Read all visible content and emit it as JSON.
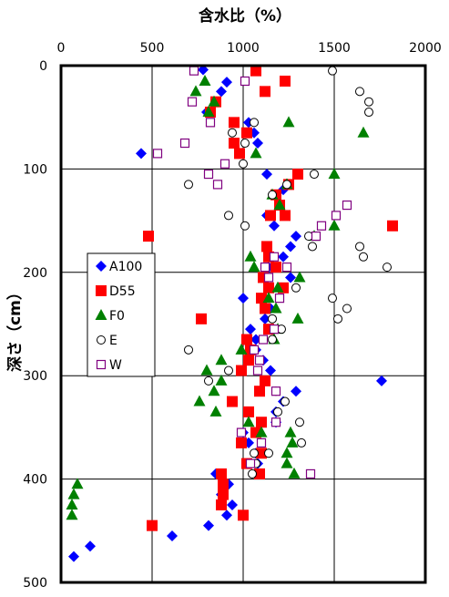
{
  "chart_data": {
    "type": "scatter",
    "title": "",
    "xlabel": "含水比（%）",
    "ylabel": "深さ（cm）",
    "x_axis_position": "top",
    "y_axis_inverted": true,
    "xlim": [
      0,
      2000
    ],
    "ylim": [
      0,
      500
    ],
    "x_ticks": [
      0,
      500,
      1000,
      1500,
      2000
    ],
    "y_ticks": [
      0,
      100,
      200,
      300,
      400,
      500
    ],
    "grid": true,
    "legend_position": "left-middle",
    "series": [
      {
        "name": "A100",
        "marker": "diamond",
        "color": "#0000ff",
        "points": [
          [
            780,
            4
          ],
          [
            910,
            16
          ],
          [
            880,
            25
          ],
          [
            800,
            45
          ],
          [
            1030,
            55
          ],
          [
            1060,
            65
          ],
          [
            1080,
            75
          ],
          [
            440,
            85
          ],
          [
            1130,
            105
          ],
          [
            1220,
            120
          ],
          [
            1200,
            135
          ],
          [
            1130,
            145
          ],
          [
            1170,
            155
          ],
          [
            1290,
            165
          ],
          [
            1260,
            175
          ],
          [
            1220,
            185
          ],
          [
            1140,
            195
          ],
          [
            1260,
            205
          ],
          [
            1210,
            215
          ],
          [
            1000,
            225
          ],
          [
            1150,
            235
          ],
          [
            1120,
            245
          ],
          [
            1040,
            255
          ],
          [
            1070,
            265
          ],
          [
            1070,
            275
          ],
          [
            1110,
            285
          ],
          [
            1150,
            295
          ],
          [
            1760,
            305
          ],
          [
            1290,
            315
          ],
          [
            1220,
            325
          ],
          [
            1180,
            335
          ],
          [
            1180,
            345
          ],
          [
            1000,
            355
          ],
          [
            1030,
            365
          ],
          [
            1070,
            375
          ],
          [
            1080,
            385
          ],
          [
            850,
            395
          ],
          [
            920,
            405
          ],
          [
            880,
            415
          ],
          [
            940,
            425
          ],
          [
            910,
            435
          ],
          [
            810,
            445
          ],
          [
            610,
            455
          ],
          [
            160,
            465
          ],
          [
            70,
            475
          ]
        ]
      },
      {
        "name": "D55",
        "marker": "square",
        "color": "#ff0000",
        "points": [
          [
            1070,
            5
          ],
          [
            1230,
            15
          ],
          [
            1120,
            25
          ],
          [
            850,
            35
          ],
          [
            820,
            45
          ],
          [
            950,
            55
          ],
          [
            1020,
            65
          ],
          [
            950,
            75
          ],
          [
            980,
            85
          ],
          [
            1300,
            105
          ],
          [
            1250,
            115
          ],
          [
            1180,
            125
          ],
          [
            1200,
            135
          ],
          [
            1150,
            145
          ],
          [
            1230,
            145
          ],
          [
            480,
            165
          ],
          [
            1130,
            175
          ],
          [
            1140,
            185
          ],
          [
            1820,
            155
          ],
          [
            1180,
            195
          ],
          [
            1110,
            205
          ],
          [
            1140,
            215
          ],
          [
            1220,
            215
          ],
          [
            1100,
            225
          ],
          [
            1120,
            235
          ],
          [
            770,
            245
          ],
          [
            1140,
            255
          ],
          [
            1020,
            265
          ],
          [
            1040,
            275
          ],
          [
            1030,
            285
          ],
          [
            990,
            295
          ],
          [
            1120,
            305
          ],
          [
            1090,
            315
          ],
          [
            940,
            325
          ],
          [
            1030,
            335
          ],
          [
            1100,
            345
          ],
          [
            1070,
            355
          ],
          [
            990,
            365
          ],
          [
            1100,
            375
          ],
          [
            1020,
            385
          ],
          [
            1090,
            395
          ],
          [
            880,
            395
          ],
          [
            890,
            405
          ],
          [
            890,
            415
          ],
          [
            880,
            425
          ],
          [
            1000,
            435
          ],
          [
            500,
            445
          ]
        ]
      },
      {
        "name": "F0",
        "marker": "triangle",
        "color": "#008000",
        "points": [
          [
            740,
            25
          ],
          [
            790,
            15
          ],
          [
            840,
            35
          ],
          [
            810,
            45
          ],
          [
            1070,
            85
          ],
          [
            1250,
            55
          ],
          [
            1660,
            65
          ],
          [
            1500,
            105
          ],
          [
            1240,
            115
          ],
          [
            1160,
            125
          ],
          [
            1200,
            135
          ],
          [
            1500,
            155
          ],
          [
            1390,
            165
          ],
          [
            1040,
            185
          ],
          [
            1060,
            195
          ],
          [
            1190,
            215
          ],
          [
            1310,
            205
          ],
          [
            1180,
            235
          ],
          [
            1140,
            225
          ],
          [
            1300,
            245
          ],
          [
            990,
            275
          ],
          [
            880,
            285
          ],
          [
            800,
            295
          ],
          [
            880,
            305
          ],
          [
            840,
            315
          ],
          [
            760,
            325
          ],
          [
            850,
            335
          ],
          [
            1030,
            345
          ],
          [
            1100,
            355
          ],
          [
            1260,
            355
          ],
          [
            1240,
            375
          ],
          [
            1270,
            365
          ],
          [
            1240,
            385
          ],
          [
            1280,
            395
          ],
          [
            90,
            405
          ],
          [
            70,
            415
          ],
          [
            60,
            425
          ],
          [
            60,
            435
          ],
          [
            1190,
            255
          ],
          [
            1170,
            265
          ]
        ]
      },
      {
        "name": "E",
        "marker": "circle",
        "color": "#000000",
        "points": [
          [
            1490,
            5
          ],
          [
            1640,
            25
          ],
          [
            1690,
            35
          ],
          [
            1690,
            45
          ],
          [
            1060,
            55
          ],
          [
            1010,
            75
          ],
          [
            940,
            65
          ],
          [
            1000,
            95
          ],
          [
            700,
            115
          ],
          [
            1390,
            105
          ],
          [
            1240,
            115
          ],
          [
            1160,
            125
          ],
          [
            920,
            145
          ],
          [
            1010,
            155
          ],
          [
            1640,
            175
          ],
          [
            1660,
            185
          ],
          [
            1380,
            175
          ],
          [
            1790,
            195
          ],
          [
            1360,
            165
          ],
          [
            1290,
            215
          ],
          [
            1490,
            225
          ],
          [
            1520,
            245
          ],
          [
            1570,
            235
          ],
          [
            1210,
            255
          ],
          [
            1160,
            265
          ],
          [
            1160,
            245
          ],
          [
            700,
            275
          ],
          [
            810,
            305
          ],
          [
            920,
            295
          ],
          [
            1180,
            315
          ],
          [
            1190,
            335
          ],
          [
            1310,
            345
          ],
          [
            1230,
            325
          ],
          [
            1320,
            365
          ],
          [
            1060,
            375
          ],
          [
            1140,
            375
          ],
          [
            1070,
            385
          ],
          [
            1050,
            395
          ]
        ]
      },
      {
        "name": "W",
        "marker": "open-square",
        "color": "#800080",
        "points": [
          [
            730,
            5
          ],
          [
            1010,
            15
          ],
          [
            720,
            35
          ],
          [
            820,
            55
          ],
          [
            680,
            75
          ],
          [
            530,
            85
          ],
          [
            900,
            95
          ],
          [
            810,
            105
          ],
          [
            860,
            115
          ],
          [
            1510,
            145
          ],
          [
            1570,
            135
          ],
          [
            1430,
            155
          ],
          [
            1400,
            165
          ],
          [
            1170,
            185
          ],
          [
            1120,
            195
          ],
          [
            1140,
            205
          ],
          [
            1200,
            225
          ],
          [
            1240,
            195
          ],
          [
            1170,
            255
          ],
          [
            1110,
            265
          ],
          [
            1090,
            285
          ],
          [
            1060,
            275
          ],
          [
            1080,
            295
          ],
          [
            1180,
            315
          ],
          [
            990,
            355
          ],
          [
            1100,
            365
          ],
          [
            1180,
            345
          ],
          [
            1370,
            395
          ],
          [
            1040,
            385
          ]
        ]
      }
    ]
  }
}
